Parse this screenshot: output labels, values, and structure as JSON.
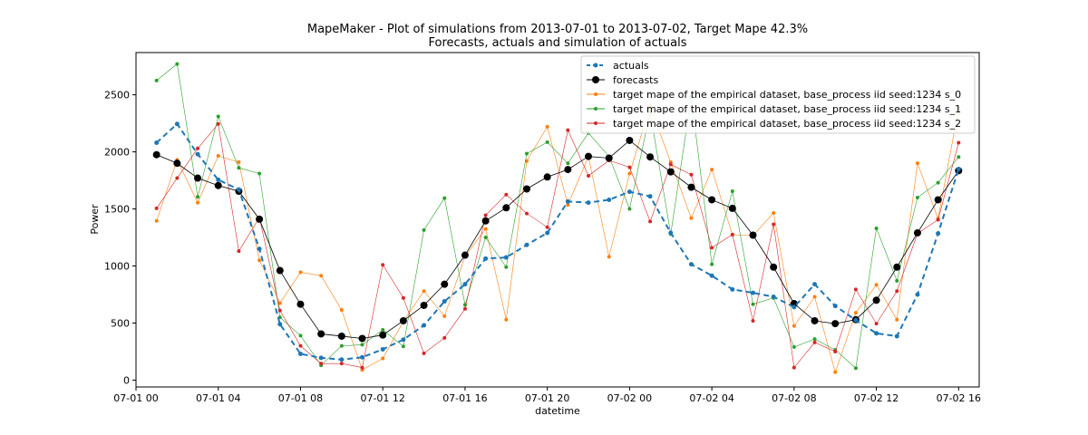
{
  "chart_data": {
    "type": "line",
    "title": "MapeMaker - Plot of simulations from 2013-07-01 to 2013-07-02, Target Mape 42.3%",
    "subtitle": "Forecasts, actuals and simulation of actuals",
    "xlabel": "datetime",
    "ylabel": "Power",
    "xlim": [
      "2013-07-01 00:00",
      "2013-07-02 17:00"
    ],
    "ylim": [
      -60,
      2870
    ],
    "grid": false,
    "legend_position": "top-right",
    "x_ticks": [
      {
        "label": "07-01 00",
        "value": "2013-07-01 00:00"
      },
      {
        "label": "07-01 04",
        "value": "2013-07-01 04:00"
      },
      {
        "label": "07-01 08",
        "value": "2013-07-01 08:00"
      },
      {
        "label": "07-01 12",
        "value": "2013-07-01 12:00"
      },
      {
        "label": "07-01 16",
        "value": "2013-07-01 16:00"
      },
      {
        "label": "07-01 20",
        "value": "2013-07-01 20:00"
      },
      {
        "label": "07-02 00",
        "value": "2013-07-02 00:00"
      },
      {
        "label": "07-02 04",
        "value": "2013-07-02 04:00"
      },
      {
        "label": "07-02 08",
        "value": "2013-07-02 08:00"
      },
      {
        "label": "07-02 12",
        "value": "2013-07-02 12:00"
      },
      {
        "label": "07-02 16",
        "value": "2013-07-02 16:00"
      }
    ],
    "y_ticks": [
      0,
      500,
      1000,
      1500,
      2000,
      2500
    ],
    "x": [
      "2013-07-01 01:00",
      "2013-07-01 02:00",
      "2013-07-01 03:00",
      "2013-07-01 04:00",
      "2013-07-01 05:00",
      "2013-07-01 06:00",
      "2013-07-01 07:00",
      "2013-07-01 08:00",
      "2013-07-01 09:00",
      "2013-07-01 10:00",
      "2013-07-01 11:00",
      "2013-07-01 12:00",
      "2013-07-01 13:00",
      "2013-07-01 14:00",
      "2013-07-01 15:00",
      "2013-07-01 16:00",
      "2013-07-01 17:00",
      "2013-07-01 18:00",
      "2013-07-01 19:00",
      "2013-07-01 20:00",
      "2013-07-01 21:00",
      "2013-07-01 22:00",
      "2013-07-01 23:00",
      "2013-07-02 00:00",
      "2013-07-02 01:00",
      "2013-07-02 02:00",
      "2013-07-02 03:00",
      "2013-07-02 04:00",
      "2013-07-02 05:00",
      "2013-07-02 06:00",
      "2013-07-02 07:00",
      "2013-07-02 08:00",
      "2013-07-02 09:00",
      "2013-07-02 10:00",
      "2013-07-02 11:00",
      "2013-07-02 12:00",
      "2013-07-02 13:00",
      "2013-07-02 14:00",
      "2013-07-02 15:00",
      "2013-07-02 16:00"
    ],
    "series": [
      {
        "name": "actuals",
        "color": "#1f77b4",
        "style": "dashed-dot-marker",
        "values": [
          2080,
          2245,
          1980,
          1755,
          1670,
          1150,
          490,
          230,
          195,
          180,
          200,
          270,
          355,
          480,
          690,
          840,
          1065,
          1075,
          1185,
          1290,
          1565,
          1555,
          1580,
          1650,
          1610,
          1290,
          1015,
          915,
          795,
          765,
          730,
          640,
          840,
          650,
          525,
          410,
          385,
          750,
          1285,
          1850
        ]
      },
      {
        "name": "forecasts",
        "color": "#000000",
        "style": "solid-large-marker",
        "values": [
          1975,
          1900,
          1770,
          1705,
          1655,
          1410,
          960,
          665,
          405,
          385,
          365,
          395,
          520,
          655,
          840,
          1095,
          1395,
          1510,
          1675,
          1780,
          1845,
          1960,
          1945,
          2100,
          1955,
          1825,
          1690,
          1580,
          1505,
          1270,
          990,
          670,
          520,
          495,
          530,
          700,
          990,
          1290,
          1580,
          1835
        ]
      },
      {
        "name": "target mape  of the empirical dataset, base_process iid  seed:1234 s_0",
        "color": "#ff7f0e",
        "style": "thin-small-marker",
        "values": [
          1395,
          1930,
          1555,
          1965,
          1910,
          1050,
          675,
          945,
          915,
          615,
          90,
          190,
          515,
          780,
          560,
          1085,
          1325,
          530,
          1920,
          2220,
          1535,
          1960,
          1080,
          1810,
          2400,
          1910,
          1420,
          1845,
          1275,
          1265,
          1465,
          475,
          730,
          70,
          590,
          835,
          530,
          1900,
          1415,
          2380
        ]
      },
      {
        "name": "target mape  of the empirical dataset, base_process iid  seed:1234 s_1",
        "color": "#2ca02c",
        "style": "thin-small-marker",
        "values": [
          2625,
          2770,
          1605,
          2310,
          1860,
          1810,
          550,
          390,
          130,
          300,
          310,
          440,
          295,
          1315,
          1595,
          660,
          1250,
          990,
          1985,
          2085,
          1900,
          2165,
          1960,
          1500,
          2350,
          1280,
          2480,
          1015,
          1655,
          665,
          720,
          290,
          360,
          265,
          105,
          1330,
          870,
          1600,
          1730,
          1955
        ]
      },
      {
        "name": "target mape  of the empirical dataset, base_process iid  seed:1234 s_2",
        "color": "#d62728",
        "style": "thin-small-marker",
        "values": [
          1505,
          1770,
          2030,
          2245,
          1130,
          1425,
          610,
          300,
          145,
          145,
          110,
          1010,
          720,
          235,
          370,
          625,
          1445,
          1625,
          1460,
          1340,
          2190,
          1790,
          1925,
          1865,
          1390,
          1890,
          1800,
          1160,
          1275,
          520,
          1365,
          110,
          330,
          250,
          795,
          495,
          780,
          1285,
          1405,
          2080
        ]
      }
    ]
  }
}
